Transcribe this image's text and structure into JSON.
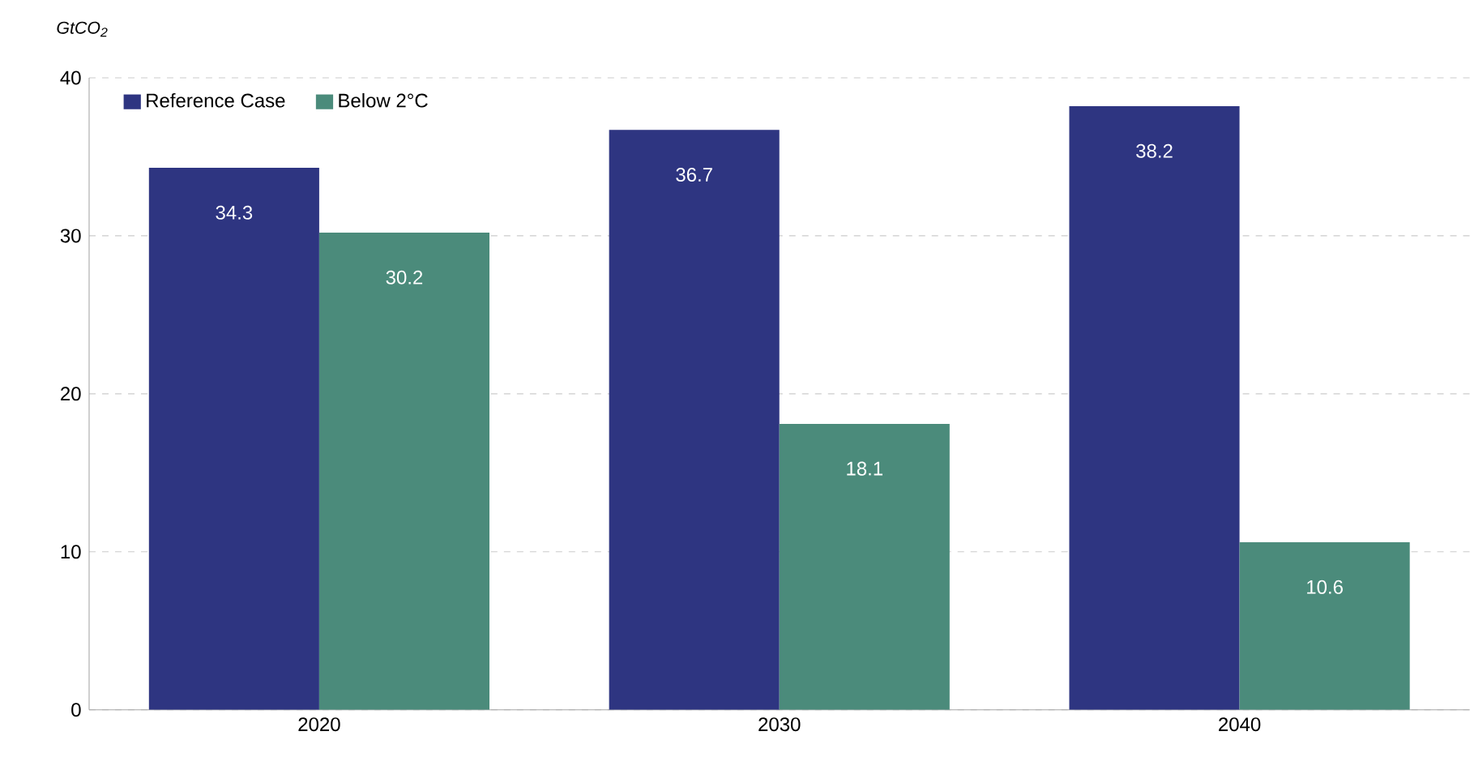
{
  "chart_data": {
    "type": "bar",
    "ylabel": "GtCO$_{2}$",
    "categories": [
      "2020",
      "2030",
      "2040"
    ],
    "series": [
      {
        "name": "Reference Case",
        "color": "#2e3581",
        "values": [
          34.3,
          36.7,
          38.2
        ]
      },
      {
        "name": "Below 2°C",
        "color": "#4b8b7b",
        "values": [
          30.2,
          18.1,
          10.6
        ]
      }
    ],
    "ylim": [
      0,
      40
    ],
    "yticks": [
      0,
      10,
      20,
      30,
      40
    ],
    "grid": "y",
    "legend": "top left",
    "data_labels": true
  }
}
